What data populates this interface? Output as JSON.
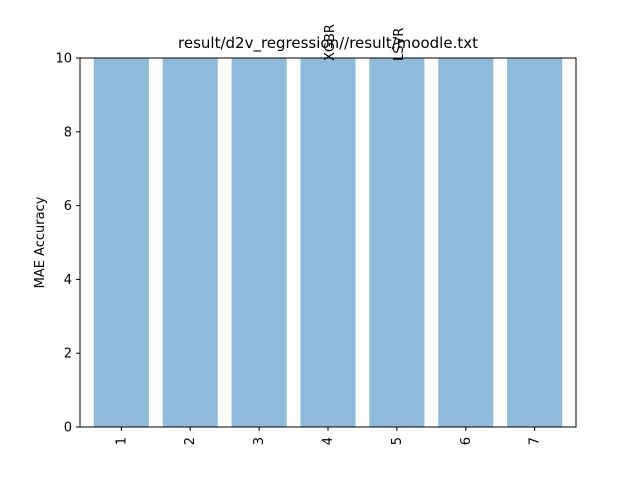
{
  "chart_data": {
    "type": "bar",
    "title": "result/d2v_regression//result/moodle.txt",
    "xlabel": "",
    "ylabel": "MAE Accuracy",
    "categories": [
      "1",
      "2",
      "3",
      "4",
      "5",
      "6",
      "7"
    ],
    "values": [
      10,
      10,
      10,
      10,
      10,
      10,
      10
    ],
    "ylim": [
      0,
      10
    ],
    "yticks": [
      "0",
      "2",
      "4",
      "6",
      "8",
      "10"
    ],
    "bar_labels": [
      {
        "category": "4",
        "text": "XGBR"
      },
      {
        "category": "5",
        "text": "LSVR"
      }
    ],
    "bar_color": "#8fbad9",
    "grid": false,
    "legend": "none"
  }
}
